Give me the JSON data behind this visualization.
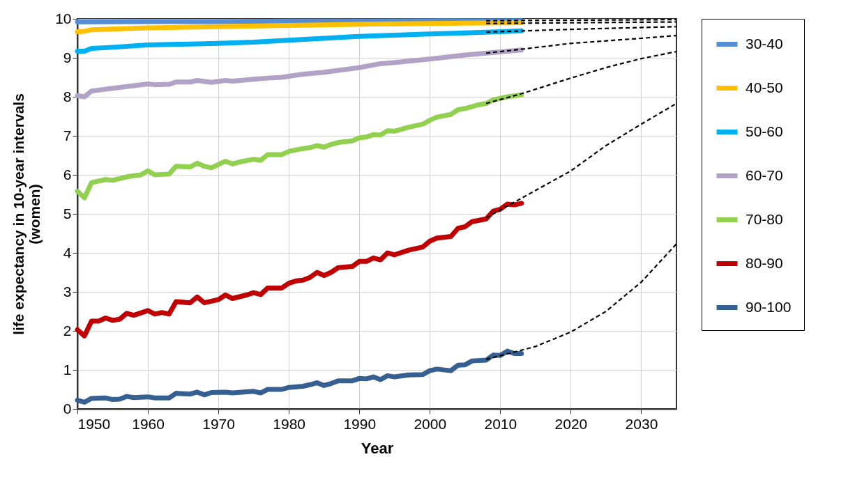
{
  "chart_data": {
    "type": "line",
    "xlabel": "Year",
    "ylabel": "life expectancy in 10-year intervals\n(women)",
    "xlim": [
      1950,
      2035
    ],
    "xticks": [
      1950,
      1960,
      1970,
      1980,
      1990,
      2000,
      2010,
      2020,
      2030
    ],
    "ylim": [
      0,
      10
    ],
    "yticks": [
      0,
      1,
      2,
      3,
      4,
      5,
      6,
      7,
      8,
      9,
      10
    ],
    "grid": true,
    "legend": "right",
    "series": [
      {
        "name": "30-40",
        "color": "#558ed5",
        "x": [
          1950,
          1960,
          1970,
          1980,
          1990,
          2000,
          2013
        ],
        "values": [
          9.92,
          9.93,
          9.93,
          9.94,
          9.94,
          9.95,
          9.95
        ]
      },
      {
        "name": "40-50",
        "color": "#ffc000",
        "x": [
          1950,
          1951,
          1952,
          1960,
          1970,
          1980,
          1990,
          2000,
          2013
        ],
        "values": [
          9.67,
          9.68,
          9.72,
          9.77,
          9.8,
          9.83,
          9.86,
          9.88,
          9.9
        ]
      },
      {
        "name": "50-60",
        "color": "#00b0f0",
        "x": [
          1950,
          1951,
          1952,
          1955,
          1960,
          1965,
          1970,
          1975,
          1980,
          1985,
          1990,
          1995,
          2000,
          2005,
          2010,
          2013
        ],
        "values": [
          9.17,
          9.17,
          9.24,
          9.27,
          9.33,
          9.35,
          9.37,
          9.4,
          9.45,
          9.5,
          9.55,
          9.58,
          9.61,
          9.64,
          9.67,
          9.69
        ]
      },
      {
        "name": "60-70",
        "color": "#b3a2c7",
        "x": [
          1950,
          1951,
          1952,
          1955,
          1960,
          1961,
          1963,
          1964,
          1966,
          1967,
          1969,
          1971,
          1972,
          1975,
          1977,
          1979,
          1982,
          1985,
          1990,
          1993,
          1995,
          2000,
          2003,
          2005,
          2010,
          2013
        ],
        "values": [
          8.03,
          8.0,
          8.15,
          8.22,
          8.33,
          8.31,
          8.32,
          8.38,
          8.38,
          8.42,
          8.37,
          8.42,
          8.4,
          8.45,
          8.48,
          8.5,
          8.58,
          8.63,
          8.75,
          8.85,
          8.88,
          8.97,
          9.03,
          9.07,
          9.15,
          9.2
        ]
      },
      {
        "name": "70-80",
        "color": "#92d050",
        "x": [
          1950,
          1951,
          1952,
          1954,
          1955,
          1957,
          1959,
          1960,
          1961,
          1963,
          1964,
          1966,
          1967,
          1968,
          1969,
          1971,
          1972,
          1973,
          1975,
          1976,
          1977,
          1979,
          1980,
          1981,
          1983,
          1984,
          1985,
          1986,
          1987,
          1989,
          1990,
          1991,
          1992,
          1993,
          1994,
          1995,
          1997,
          1999,
          2000,
          2001,
          2003,
          2004,
          2005,
          2007,
          2008,
          2009,
          2011,
          2013
        ],
        "values": [
          5.58,
          5.41,
          5.8,
          5.88,
          5.86,
          5.95,
          6.0,
          6.1,
          6.0,
          6.02,
          6.22,
          6.2,
          6.3,
          6.22,
          6.18,
          6.35,
          6.28,
          6.33,
          6.4,
          6.37,
          6.52,
          6.52,
          6.6,
          6.64,
          6.7,
          6.75,
          6.71,
          6.78,
          6.83,
          6.87,
          6.95,
          6.97,
          7.03,
          7.02,
          7.13,
          7.12,
          7.22,
          7.3,
          7.4,
          7.48,
          7.55,
          7.67,
          7.7,
          7.8,
          7.83,
          7.92,
          8.0,
          8.05
        ]
      },
      {
        "name": "80-90",
        "color": "#c00000",
        "x": [
          1950,
          1951,
          1952,
          1953,
          1954,
          1955,
          1956,
          1957,
          1958,
          1960,
          1961,
          1962,
          1963,
          1964,
          1966,
          1967,
          1968,
          1970,
          1971,
          1972,
          1974,
          1975,
          1976,
          1977,
          1979,
          1980,
          1981,
          1982,
          1983,
          1984,
          1985,
          1986,
          1987,
          1989,
          1990,
          1991,
          1992,
          1993,
          1994,
          1995,
          1997,
          1999,
          2000,
          2001,
          2003,
          2004,
          2005,
          2006,
          2008,
          2009,
          2010,
          2011,
          2012,
          2013
        ],
        "values": [
          2.03,
          1.87,
          2.25,
          2.25,
          2.33,
          2.27,
          2.3,
          2.45,
          2.4,
          2.52,
          2.43,
          2.47,
          2.43,
          2.75,
          2.72,
          2.87,
          2.72,
          2.8,
          2.92,
          2.83,
          2.92,
          2.98,
          2.93,
          3.1,
          3.1,
          3.22,
          3.28,
          3.3,
          3.37,
          3.5,
          3.42,
          3.5,
          3.62,
          3.65,
          3.78,
          3.78,
          3.87,
          3.82,
          4.0,
          3.95,
          4.07,
          4.15,
          4.3,
          4.38,
          4.42,
          4.63,
          4.67,
          4.8,
          4.87,
          5.07,
          5.12,
          5.25,
          5.23,
          5.27
        ]
      },
      {
        "name": "90-100",
        "color": "#376092",
        "x": [
          1950,
          1951,
          1952,
          1954,
          1955,
          1956,
          1957,
          1958,
          1960,
          1961,
          1963,
          1964,
          1966,
          1967,
          1968,
          1969,
          1971,
          1972,
          1975,
          1976,
          1977,
          1979,
          1980,
          1982,
          1983,
          1984,
          1985,
          1986,
          1987,
          1989,
          1990,
          1991,
          1992,
          1993,
          1994,
          1995,
          1997,
          1999,
          2000,
          2001,
          2003,
          2004,
          2005,
          2006,
          2008,
          2009,
          2010,
          2011,
          2012,
          2013
        ],
        "values": [
          0.22,
          0.17,
          0.27,
          0.28,
          0.24,
          0.25,
          0.32,
          0.29,
          0.31,
          0.28,
          0.28,
          0.4,
          0.38,
          0.43,
          0.36,
          0.42,
          0.43,
          0.41,
          0.45,
          0.41,
          0.5,
          0.5,
          0.55,
          0.58,
          0.62,
          0.67,
          0.6,
          0.65,
          0.72,
          0.72,
          0.78,
          0.77,
          0.82,
          0.75,
          0.85,
          0.82,
          0.87,
          0.88,
          0.98,
          1.02,
          0.98,
          1.12,
          1.13,
          1.23,
          1.25,
          1.38,
          1.37,
          1.48,
          1.42,
          1.42
        ]
      },
      {
        "type": "line",
        "line_style": "dashed",
        "color": "#000000",
        "x": [
          2008,
          2035
        ],
        "values": [
          9.95,
          9.98
        ]
      },
      {
        "type": "line",
        "line_style": "dashed",
        "color": "#000000",
        "x": [
          2008,
          2035
        ],
        "values": [
          9.88,
          9.92
        ]
      },
      {
        "type": "line",
        "line_style": "dashed",
        "color": "#000000",
        "x": [
          2008,
          2020,
          2035
        ],
        "values": [
          9.66,
          9.73,
          9.8
        ]
      },
      {
        "type": "line",
        "line_style": "dashed",
        "color": "#000000",
        "x": [
          2008,
          2013,
          2020,
          2030,
          2035
        ],
        "values": [
          9.12,
          9.22,
          9.37,
          9.5,
          9.57
        ]
      },
      {
        "type": "line",
        "line_style": "dashed",
        "color": "#000000",
        "x": [
          2008,
          2013,
          2020,
          2025,
          2030,
          2035
        ],
        "values": [
          7.83,
          8.08,
          8.48,
          8.75,
          8.98,
          9.16
        ]
      },
      {
        "type": "line",
        "line_style": "dashed",
        "color": "#000000",
        "x": [
          2008,
          2012,
          2020,
          2025,
          2030,
          2035
        ],
        "values": [
          4.9,
          5.3,
          6.1,
          6.75,
          7.3,
          7.83
        ]
      },
      {
        "type": "line",
        "line_style": "dashed",
        "color": "#000000",
        "x": [
          2008,
          2015,
          2020,
          2025,
          2030,
          2035
        ],
        "values": [
          1.27,
          1.6,
          1.97,
          2.5,
          3.25,
          4.23
        ]
      }
    ]
  }
}
